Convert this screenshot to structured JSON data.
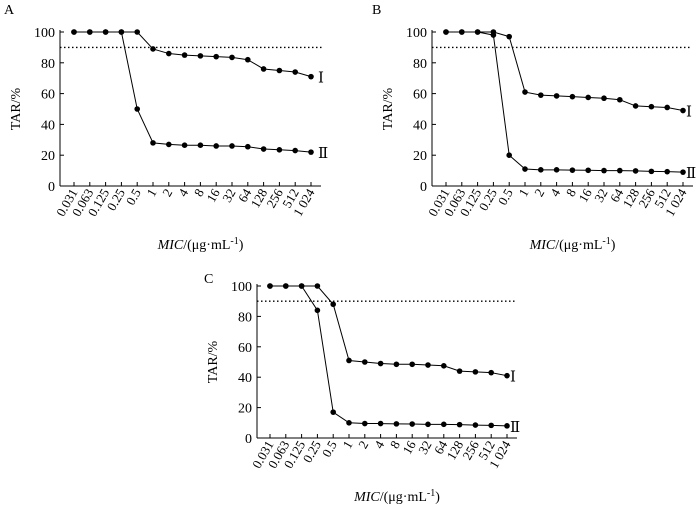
{
  "figure": {
    "panel_labels": [
      "A",
      "B",
      "C"
    ],
    "y_axis_label": "TAR/%",
    "x_axis_label_italic": "MIC",
    "x_axis_label_rest": "/(μg·mL",
    "x_axis_label_sup": "-1",
    "x_axis_label_close": ")"
  },
  "chart_data": [
    {
      "type": "line",
      "panel": "A",
      "ylabel": "TAR/%",
      "xlabel": "MIC/(μg·mL-1)",
      "ylim": [
        0,
        100
      ],
      "yticks": [
        0,
        20,
        40,
        60,
        80,
        100
      ],
      "categories": [
        "0.031",
        "0.063",
        "0.125",
        "0.25",
        "0.5",
        "1",
        "2",
        "4",
        "8",
        "16",
        "32",
        "64",
        "128",
        "256",
        "512",
        "1 024"
      ],
      "reference_line": 90,
      "series": [
        {
          "name": "Ⅰ",
          "values": [
            100,
            100,
            100,
            100,
            100,
            89,
            86,
            85,
            84.5,
            84,
            83.5,
            82,
            76,
            75,
            74,
            71
          ]
        },
        {
          "name": "Ⅱ",
          "values": [
            100,
            100,
            100,
            100,
            50,
            28,
            27,
            26.5,
            26.5,
            26,
            26,
            25.5,
            24,
            23.5,
            23,
            22
          ]
        }
      ]
    },
    {
      "type": "line",
      "panel": "B",
      "ylabel": "TAR/%",
      "xlabel": "MIC/(μg·mL-1)",
      "ylim": [
        0,
        100
      ],
      "yticks": [
        0,
        20,
        40,
        60,
        80,
        100
      ],
      "categories": [
        "0.031",
        "0.063",
        "0.125",
        "0.25",
        "0.5",
        "1",
        "2",
        "4",
        "8",
        "16",
        "32",
        "64",
        "128",
        "256",
        "512",
        "1 024"
      ],
      "reference_line": 90,
      "series": [
        {
          "name": "Ⅰ",
          "values": [
            100,
            100,
            100,
            100,
            97,
            61,
            59,
            58.5,
            58,
            57.5,
            57,
            56,
            52,
            51.5,
            51,
            49
          ]
        },
        {
          "name": "Ⅱ",
          "values": [
            100,
            100,
            100,
            98,
            20,
            11,
            10.5,
            10.5,
            10.3,
            10.2,
            10,
            10,
            9.8,
            9.5,
            9.3,
            9
          ]
        }
      ]
    },
    {
      "type": "line",
      "panel": "C",
      "ylabel": "TAR/%",
      "xlabel": "MIC/(μg·mL-1)",
      "ylim": [
        0,
        100
      ],
      "yticks": [
        0,
        20,
        40,
        60,
        80,
        100
      ],
      "categories": [
        "0.031",
        "0.063",
        "0.125",
        "0.25",
        "0.5",
        "1",
        "2",
        "4",
        "8",
        "16",
        "32",
        "64",
        "128",
        "256",
        "512",
        "1 024"
      ],
      "reference_line": 90,
      "series": [
        {
          "name": "Ⅰ",
          "values": [
            100,
            100,
            100,
            100,
            88,
            51,
            50,
            49,
            48.5,
            48.5,
            48,
            47.5,
            44,
            43.5,
            43,
            41
          ]
        },
        {
          "name": "Ⅱ",
          "values": [
            100,
            100,
            100,
            84,
            17,
            10,
            9.5,
            9.5,
            9.3,
            9.2,
            9,
            9,
            8.8,
            8.5,
            8.3,
            8
          ]
        }
      ]
    }
  ]
}
